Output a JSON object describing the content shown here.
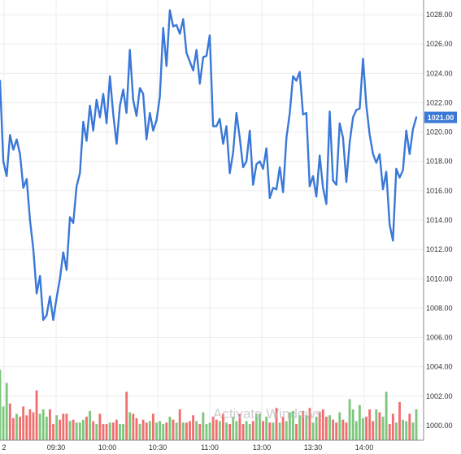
{
  "chart_data": {
    "type": "line",
    "title": "",
    "xlabel": "",
    "ylabel": "",
    "x_ticks": [
      "2",
      "09:30",
      "10:00",
      "10:30",
      "11:00",
      "13:00",
      "13:30",
      "14:00"
    ],
    "y_ticks": [
      "1028.00",
      "1026.00",
      "1024.00",
      "1022.00",
      "1020.00",
      "1018.00",
      "1016.00",
      "1014.00",
      "1012.00",
      "1010.00",
      "1008.00",
      "1006.00",
      "1004.00",
      "1002.00",
      "1000.00"
    ],
    "ylim": [
      999.0,
      1029.0
    ],
    "last_price_label": "1021.00",
    "grid": true,
    "series": [
      {
        "kind": "line",
        "color": "#3a78d8",
        "values": [
          1023.5,
          1018,
          1017,
          1019.8,
          1018.8,
          1019.5,
          1018.5,
          1016.2,
          1016.8,
          1014,
          1012,
          1009,
          1010.2,
          1007.2,
          1007.5,
          1008.8,
          1007.2,
          1008.7,
          1010,
          1011.8,
          1010.6,
          1014.2,
          1013.8,
          1016.3,
          1017.2,
          1020.7,
          1019.4,
          1021.8,
          1020.1,
          1022.2,
          1021,
          1022.6,
          1020.6,
          1023.8,
          1021.2,
          1019.2,
          1021.8,
          1022.9,
          1021.3,
          1025.6,
          1022.2,
          1021.1,
          1023,
          1022.6,
          1019.5,
          1021.3,
          1020.1,
          1020.8,
          1022.4,
          1027.1,
          1024.5,
          1028.3,
          1027.2,
          1027.3,
          1026.7,
          1027.7,
          1025.4,
          1024.8,
          1024.2,
          1025.6,
          1023.3,
          1025.1,
          1025.2,
          1026.6,
          1020.4,
          1020.4,
          1020.9,
          1019.2,
          1020.4,
          1017.2,
          1018.6,
          1021.3,
          1019.6,
          1017.6,
          1018,
          1020.1,
          1016.4,
          1017.8,
          1018,
          1017.5,
          1018.9,
          1015.5,
          1016.2,
          1016.1,
          1017.6,
          1015.9,
          1019.6,
          1021.3,
          1023.8,
          1023.5,
          1024.1,
          1021.2,
          1021.3,
          1016.3,
          1017,
          1015.6,
          1018.4,
          1016.2,
          1015.1,
          1021.4,
          1016.7,
          1016.4,
          1020.6,
          1019.6,
          1016.6,
          1019.3,
          1021,
          1021.5,
          1021.6,
          1025,
          1021.8,
          1019.8,
          1018.5,
          1017.9,
          1018.5,
          1016.1,
          1017.3,
          1013.7,
          1012.6,
          1017.5,
          1016.9,
          1017.4,
          1020.1,
          1018.5,
          1020.2,
          1021
        ]
      },
      {
        "kind": "volume",
        "color_up": "#7dc67d",
        "color_down": "#ef6f6f",
        "values": [
          1003.8,
          1001.3,
          1002.9,
          1001.5,
          1000.5,
          1000.8,
          1000.6,
          1001.3,
          1000.7,
          1001.1,
          1000.9,
          1002.4,
          1000.8,
          1001.1,
          1000.6,
          1001.1,
          1000.1,
          1000.7,
          1000.4,
          1000.8,
          1000.8,
          1000.3,
          1000.4,
          1000.2,
          1000.2,
          1000.4,
          1000.6,
          1001,
          1000.3,
          1000.1,
          1000.8,
          1000.1,
          1000.1,
          1000.2,
          1000.2,
          1000.4,
          1000.1,
          1000.1,
          1002.3,
          1000.9,
          1000.8,
          1000.5,
          1000.1,
          1000.4,
          1000.2,
          1000.3,
          1000.8,
          1000.2,
          1000.3,
          1000.1,
          1000.2,
          1000.6,
          1000.4,
          1000.2,
          1001.1,
          1000.2,
          1000.2,
          1000.3,
          1000.7,
          1000.3,
          1000.1,
          1000.9,
          1000.1,
          1000.2,
          1000.6,
          1000.4,
          1000.3,
          1000.8,
          1000.2,
          1000.1,
          1000.6,
          1000.3,
          1000.8,
          1000.1,
          1000.3,
          1000.1,
          1000.3,
          1000.8,
          1000.8,
          1000.3,
          1000.6,
          1000.2,
          1000.2,
          1001.2,
          1000.2,
          1000.6,
          1000.3,
          1000.9,
          1001,
          1000.1,
          1000.7,
          1001,
          1000.7,
          1001.2,
          1000.2,
          1000.6,
          1000.9,
          1001.1,
          1000.6,
          1000.7,
          1000.4,
          1000.2,
          1000.9,
          1000.4,
          1000.2,
          1001.8,
          1001.1,
          1000.3,
          1001.4,
          1000.5,
          1000.6,
          1001.1,
          1000.3,
          1001.1,
          1000.9,
          1000.6,
          1002.3,
          1000.1,
          1000.8,
          1000.2,
          1001.6,
          1000.4,
          1000.3,
          1000.8,
          1000.2,
          1001.1
        ],
        "up": [
          1,
          1,
          1,
          0,
          0,
          1,
          0,
          0,
          0,
          0,
          0,
          0,
          1,
          1,
          1,
          0,
          0,
          1,
          0,
          0,
          0,
          1,
          0,
          1,
          1,
          1,
          0,
          1,
          0,
          1,
          0,
          0,
          0,
          1,
          0,
          0,
          1,
          1,
          0,
          1,
          0,
          0,
          1,
          0,
          0,
          1,
          0,
          1,
          1,
          1,
          0,
          1,
          0,
          1,
          0,
          1,
          0,
          0,
          0,
          1,
          0,
          1,
          1,
          1,
          0,
          0,
          1,
          0,
          1,
          0,
          1,
          1,
          0,
          0,
          1,
          1,
          0,
          1,
          1,
          0,
          1,
          0,
          1,
          0,
          1,
          0,
          1,
          1,
          1,
          0,
          1,
          0,
          1,
          0,
          1,
          1,
          0,
          0,
          0,
          1,
          0,
          0,
          1,
          0,
          0,
          1,
          1,
          1,
          1,
          1,
          0,
          0,
          0,
          1,
          0,
          1,
          1,
          0,
          0,
          1,
          0,
          1,
          1,
          0,
          1,
          1
        ]
      }
    ]
  },
  "watermark": "Activate Windows"
}
